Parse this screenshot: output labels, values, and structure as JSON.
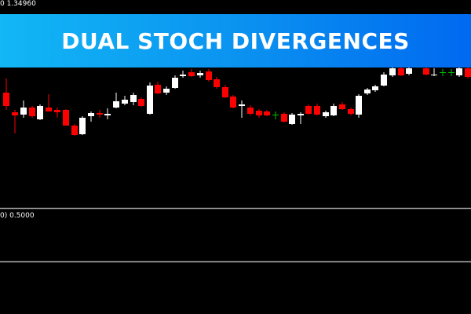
{
  "header": {
    "price_label": "0 1.34960",
    "title": "DUAL STOCH DIVERGENCES"
  },
  "subwindow": {
    "level_label": "0) 0.5000"
  }
}
